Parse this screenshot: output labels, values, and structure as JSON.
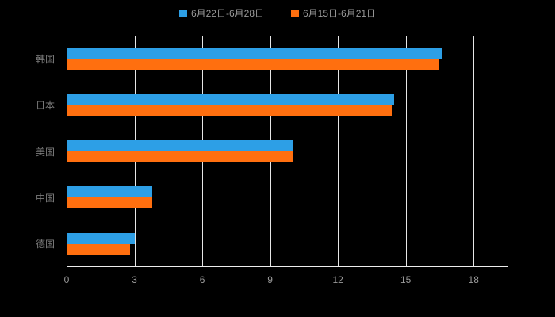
{
  "chart_data": {
    "type": "bar",
    "orientation": "horizontal",
    "title": "",
    "categories": [
      "韩国",
      "日本",
      "美国",
      "中国",
      "德国"
    ],
    "series": [
      {
        "name": "6月22日-6月28日",
        "color": "#2D9FE6",
        "values": [
          16.6,
          14.5,
          10.0,
          3.8,
          3.0
        ]
      },
      {
        "name": "6月15日-6月21日",
        "color": "#FF6F0F",
        "values": [
          16.5,
          14.4,
          10.0,
          3.8,
          2.8
        ]
      }
    ],
    "xlim": [
      0,
      19.5
    ],
    "xticks": [
      0,
      3,
      6,
      9,
      12,
      15,
      18
    ],
    "grid": true,
    "legend_position": "top",
    "colors": {
      "background": "#000000",
      "axis_line": "#ECECEC",
      "gridline": "#E6E6E6",
      "category_label": "#7A7A7A",
      "tick_label": "#9A9A9A"
    }
  }
}
